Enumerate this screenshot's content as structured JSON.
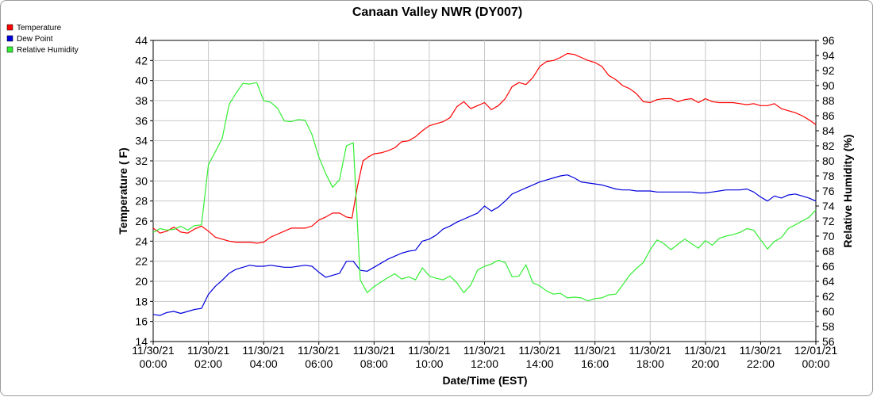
{
  "chart_data": {
    "type": "line",
    "title": "Canaan Valley NWR (DY007)",
    "xlabel": "Date/Time (EST)",
    "ylabel": "Temperature ( F)",
    "y2label": "Relative Humidity (%)",
    "xlim": [
      0,
      24
    ],
    "ylim": [
      14,
      44
    ],
    "y2lim": [
      56,
      96
    ],
    "y_ticks": [
      14,
      16,
      18,
      20,
      22,
      24,
      26,
      28,
      30,
      32,
      34,
      36,
      38,
      40,
      42,
      44
    ],
    "y2_ticks": [
      56,
      58,
      60,
      62,
      64,
      66,
      68,
      70,
      72,
      74,
      76,
      78,
      80,
      82,
      84,
      86,
      88,
      90,
      92,
      94,
      96
    ],
    "x_ticks": [
      {
        "x": 0,
        "date": "11/30/21",
        "time": "00:00"
      },
      {
        "x": 2,
        "date": "11/30/21",
        "time": "02:00"
      },
      {
        "x": 4,
        "date": "11/30/21",
        "time": "04:00"
      },
      {
        "x": 6,
        "date": "11/30/21",
        "time": "06:00"
      },
      {
        "x": 8,
        "date": "11/30/21",
        "time": "08:00"
      },
      {
        "x": 10,
        "date": "11/30/21",
        "time": "10:00"
      },
      {
        "x": 12,
        "date": "11/30/21",
        "time": "12:00"
      },
      {
        "x": 14,
        "date": "11/30/21",
        "time": "14:00"
      },
      {
        "x": 16,
        "date": "11/30/21",
        "time": "16:00"
      },
      {
        "x": 18,
        "date": "11/30/21",
        "time": "18:00"
      },
      {
        "x": 20,
        "date": "11/30/21",
        "time": "20:00"
      },
      {
        "x": 22,
        "date": "11/30/21",
        "time": "22:00"
      },
      {
        "x": 24,
        "date": "12/01/21",
        "time": "00:00"
      }
    ],
    "grid": true,
    "legend_position": "top-left",
    "series": [
      {
        "name": "Temperature",
        "color": "#ff0000",
        "axis": "left",
        "points": [
          [
            0,
            25.3
          ],
          [
            0.25,
            24.8
          ],
          [
            0.5,
            25
          ],
          [
            0.75,
            25.4
          ],
          [
            1,
            24.9
          ],
          [
            1.25,
            24.8
          ],
          [
            1.5,
            25.2
          ],
          [
            1.75,
            25.5
          ],
          [
            2,
            25
          ],
          [
            2.25,
            24.4
          ],
          [
            2.5,
            24.2
          ],
          [
            2.75,
            24
          ],
          [
            3,
            23.9
          ],
          [
            3.25,
            23.9
          ],
          [
            3.5,
            23.9
          ],
          [
            3.75,
            23.8
          ],
          [
            4,
            23.9
          ],
          [
            4.25,
            24.4
          ],
          [
            4.5,
            24.7
          ],
          [
            4.75,
            25
          ],
          [
            5,
            25.3
          ],
          [
            5.25,
            25.3
          ],
          [
            5.5,
            25.3
          ],
          [
            5.75,
            25.5
          ],
          [
            6,
            26.1
          ],
          [
            6.25,
            26.4
          ],
          [
            6.5,
            26.8
          ],
          [
            6.75,
            26.8
          ],
          [
            7,
            26.4
          ],
          [
            7.2,
            26.3
          ],
          [
            7.4,
            29.5
          ],
          [
            7.6,
            32
          ],
          [
            7.8,
            32.4
          ],
          [
            8,
            32.7
          ],
          [
            8.25,
            32.8
          ],
          [
            8.5,
            33
          ],
          [
            8.75,
            33.3
          ],
          [
            9,
            33.9
          ],
          [
            9.25,
            34
          ],
          [
            9.5,
            34.4
          ],
          [
            9.75,
            35
          ],
          [
            10,
            35.5
          ],
          [
            10.25,
            35.7
          ],
          [
            10.5,
            35.9
          ],
          [
            10.75,
            36.3
          ],
          [
            11,
            37.4
          ],
          [
            11.25,
            37.9
          ],
          [
            11.5,
            37.2
          ],
          [
            11.75,
            37.5
          ],
          [
            12,
            37.8
          ],
          [
            12.25,
            37.1
          ],
          [
            12.5,
            37.5
          ],
          [
            12.75,
            38.2
          ],
          [
            13,
            39.4
          ],
          [
            13.25,
            39.8
          ],
          [
            13.5,
            39.6
          ],
          [
            13.75,
            40.3
          ],
          [
            14,
            41.4
          ],
          [
            14.25,
            41.9
          ],
          [
            14.5,
            42
          ],
          [
            14.75,
            42.3
          ],
          [
            15,
            42.7
          ],
          [
            15.25,
            42.6
          ],
          [
            15.5,
            42.3
          ],
          [
            15.75,
            42
          ],
          [
            16,
            41.8
          ],
          [
            16.25,
            41.4
          ],
          [
            16.5,
            40.5
          ],
          [
            16.75,
            40.1
          ],
          [
            17,
            39.5
          ],
          [
            17.25,
            39.2
          ],
          [
            17.5,
            38.7
          ],
          [
            17.75,
            37.9
          ],
          [
            18,
            37.8
          ],
          [
            18.25,
            38.1
          ],
          [
            18.5,
            38.2
          ],
          [
            18.75,
            38.2
          ],
          [
            19,
            37.9
          ],
          [
            19.25,
            38.1
          ],
          [
            19.5,
            38.2
          ],
          [
            19.75,
            37.8
          ],
          [
            20,
            38.2
          ],
          [
            20.25,
            37.9
          ],
          [
            20.5,
            37.8
          ],
          [
            20.75,
            37.8
          ],
          [
            21,
            37.8
          ],
          [
            21.25,
            37.7
          ],
          [
            21.5,
            37.6
          ],
          [
            21.75,
            37.7
          ],
          [
            22,
            37.5
          ],
          [
            22.25,
            37.5
          ],
          [
            22.5,
            37.7
          ],
          [
            22.75,
            37.2
          ],
          [
            23,
            37
          ],
          [
            23.25,
            36.8
          ],
          [
            23.5,
            36.5
          ],
          [
            23.75,
            36.1
          ],
          [
            24,
            35.6
          ]
        ]
      },
      {
        "name": "Dew Point",
        "color": "#0000dd",
        "axis": "left",
        "points": [
          [
            0,
            16.7
          ],
          [
            0.25,
            16.6
          ],
          [
            0.5,
            16.9
          ],
          [
            0.75,
            17
          ],
          [
            1,
            16.8
          ],
          [
            1.25,
            17
          ],
          [
            1.5,
            17.2
          ],
          [
            1.75,
            17.3
          ],
          [
            2,
            18.7
          ],
          [
            2.25,
            19.5
          ],
          [
            2.5,
            20.1
          ],
          [
            2.75,
            20.8
          ],
          [
            3,
            21.2
          ],
          [
            3.25,
            21.4
          ],
          [
            3.5,
            21.6
          ],
          [
            3.75,
            21.5
          ],
          [
            4,
            21.5
          ],
          [
            4.25,
            21.6
          ],
          [
            4.5,
            21.5
          ],
          [
            4.75,
            21.4
          ],
          [
            5,
            21.4
          ],
          [
            5.25,
            21.5
          ],
          [
            5.5,
            21.6
          ],
          [
            5.75,
            21.5
          ],
          [
            6,
            20.9
          ],
          [
            6.25,
            20.4
          ],
          [
            6.5,
            20.6
          ],
          [
            6.75,
            20.8
          ],
          [
            7,
            22
          ],
          [
            7.25,
            22
          ],
          [
            7.5,
            21.1
          ],
          [
            7.75,
            21
          ],
          [
            8,
            21.4
          ],
          [
            8.25,
            21.8
          ],
          [
            8.5,
            22.2
          ],
          [
            8.75,
            22.5
          ],
          [
            9,
            22.8
          ],
          [
            9.25,
            23
          ],
          [
            9.5,
            23.1
          ],
          [
            9.75,
            24
          ],
          [
            10,
            24.2
          ],
          [
            10.25,
            24.6
          ],
          [
            10.5,
            25.2
          ],
          [
            10.75,
            25.5
          ],
          [
            11,
            25.9
          ],
          [
            11.25,
            26.2
          ],
          [
            11.5,
            26.5
          ],
          [
            11.75,
            26.8
          ],
          [
            12,
            27.5
          ],
          [
            12.25,
            27
          ],
          [
            12.5,
            27.4
          ],
          [
            12.75,
            28
          ],
          [
            13,
            28.7
          ],
          [
            13.25,
            29
          ],
          [
            13.5,
            29.3
          ],
          [
            13.75,
            29.6
          ],
          [
            14,
            29.9
          ],
          [
            14.25,
            30.1
          ],
          [
            14.5,
            30.3
          ],
          [
            14.75,
            30.5
          ],
          [
            15,
            30.6
          ],
          [
            15.25,
            30.3
          ],
          [
            15.5,
            29.9
          ],
          [
            15.75,
            29.8
          ],
          [
            16,
            29.7
          ],
          [
            16.25,
            29.6
          ],
          [
            16.5,
            29.4
          ],
          [
            16.75,
            29.2
          ],
          [
            17,
            29.1
          ],
          [
            17.25,
            29.1
          ],
          [
            17.5,
            29
          ],
          [
            17.75,
            29
          ],
          [
            18,
            29
          ],
          [
            18.25,
            28.9
          ],
          [
            18.5,
            28.9
          ],
          [
            18.75,
            28.9
          ],
          [
            19,
            28.9
          ],
          [
            19.25,
            28.9
          ],
          [
            19.5,
            28.9
          ],
          [
            19.75,
            28.8
          ],
          [
            20,
            28.8
          ],
          [
            20.25,
            28.9
          ],
          [
            20.5,
            29
          ],
          [
            20.75,
            29.1
          ],
          [
            21,
            29.1
          ],
          [
            21.25,
            29.1
          ],
          [
            21.5,
            29.2
          ],
          [
            21.75,
            28.9
          ],
          [
            22,
            28.4
          ],
          [
            22.25,
            28
          ],
          [
            22.5,
            28.5
          ],
          [
            22.75,
            28.3
          ],
          [
            23,
            28.6
          ],
          [
            23.25,
            28.7
          ],
          [
            23.5,
            28.5
          ],
          [
            23.75,
            28.3
          ],
          [
            24,
            28
          ]
        ]
      },
      {
        "name": "Relative Humidity",
        "color": "#33ee33",
        "axis": "right",
        "points": [
          [
            0,
            70.5
          ],
          [
            0.25,
            71
          ],
          [
            0.5,
            70.8
          ],
          [
            0.75,
            70.9
          ],
          [
            1,
            71.3
          ],
          [
            1.25,
            70.8
          ],
          [
            1.5,
            71.4
          ],
          [
            1.75,
            71.5
          ],
          [
            2,
            79.5
          ],
          [
            2.25,
            81.2
          ],
          [
            2.5,
            83
          ],
          [
            2.75,
            87.5
          ],
          [
            3,
            89
          ],
          [
            3.25,
            90.3
          ],
          [
            3.5,
            90.2
          ],
          [
            3.75,
            90.4
          ],
          [
            4,
            88
          ],
          [
            4.25,
            87.8
          ],
          [
            4.5,
            87
          ],
          [
            4.75,
            85.3
          ],
          [
            5,
            85.2
          ],
          [
            5.25,
            85.5
          ],
          [
            5.5,
            85.4
          ],
          [
            5.75,
            83.5
          ],
          [
            6,
            80.5
          ],
          [
            6.25,
            78.3
          ],
          [
            6.5,
            76.5
          ],
          [
            6.75,
            77.5
          ],
          [
            7,
            82
          ],
          [
            7.25,
            82.4
          ],
          [
            7.5,
            64.2
          ],
          [
            7.75,
            62.5
          ],
          [
            8,
            63.3
          ],
          [
            8.25,
            63.9
          ],
          [
            8.5,
            64.5
          ],
          [
            8.75,
            65
          ],
          [
            9,
            64.3
          ],
          [
            9.25,
            64.6
          ],
          [
            9.5,
            64.2
          ],
          [
            9.75,
            65.8
          ],
          [
            10,
            64.7
          ],
          [
            10.25,
            64.4
          ],
          [
            10.5,
            64.2
          ],
          [
            10.75,
            64.7
          ],
          [
            11,
            63.8
          ],
          [
            11.25,
            62.5
          ],
          [
            11.5,
            63.5
          ],
          [
            11.75,
            65.5
          ],
          [
            12,
            66
          ],
          [
            12.25,
            66.3
          ],
          [
            12.5,
            66.8
          ],
          [
            12.75,
            66.5
          ],
          [
            13,
            64.6
          ],
          [
            13.25,
            64.7
          ],
          [
            13.5,
            66.2
          ],
          [
            13.75,
            63.8
          ],
          [
            14,
            63.4
          ],
          [
            14.25,
            62.7
          ],
          [
            14.5,
            62.3
          ],
          [
            14.75,
            62.4
          ],
          [
            15,
            61.8
          ],
          [
            15.25,
            61.9
          ],
          [
            15.5,
            61.8
          ],
          [
            15.75,
            61.4
          ],
          [
            16,
            61.7
          ],
          [
            16.25,
            61.8
          ],
          [
            16.5,
            62.2
          ],
          [
            16.75,
            62.3
          ],
          [
            17,
            63.5
          ],
          [
            17.25,
            64.8
          ],
          [
            17.5,
            65.7
          ],
          [
            17.75,
            66.5
          ],
          [
            18,
            68.2
          ],
          [
            18.25,
            69.5
          ],
          [
            18.5,
            69
          ],
          [
            18.75,
            68.2
          ],
          [
            19,
            68.9
          ],
          [
            19.25,
            69.6
          ],
          [
            19.5,
            69
          ],
          [
            19.75,
            68.4
          ],
          [
            20,
            69.4
          ],
          [
            20.25,
            68.8
          ],
          [
            20.5,
            69.7
          ],
          [
            20.75,
            70
          ],
          [
            21,
            70.2
          ],
          [
            21.25,
            70.5
          ],
          [
            21.5,
            71
          ],
          [
            21.75,
            70.8
          ],
          [
            22,
            69.5
          ],
          [
            22.25,
            68.3
          ],
          [
            22.5,
            69.3
          ],
          [
            22.75,
            69.8
          ],
          [
            23,
            71
          ],
          [
            23.25,
            71.5
          ],
          [
            23.5,
            72
          ],
          [
            23.75,
            72.5
          ],
          [
            24,
            73.5
          ]
        ]
      }
    ]
  }
}
